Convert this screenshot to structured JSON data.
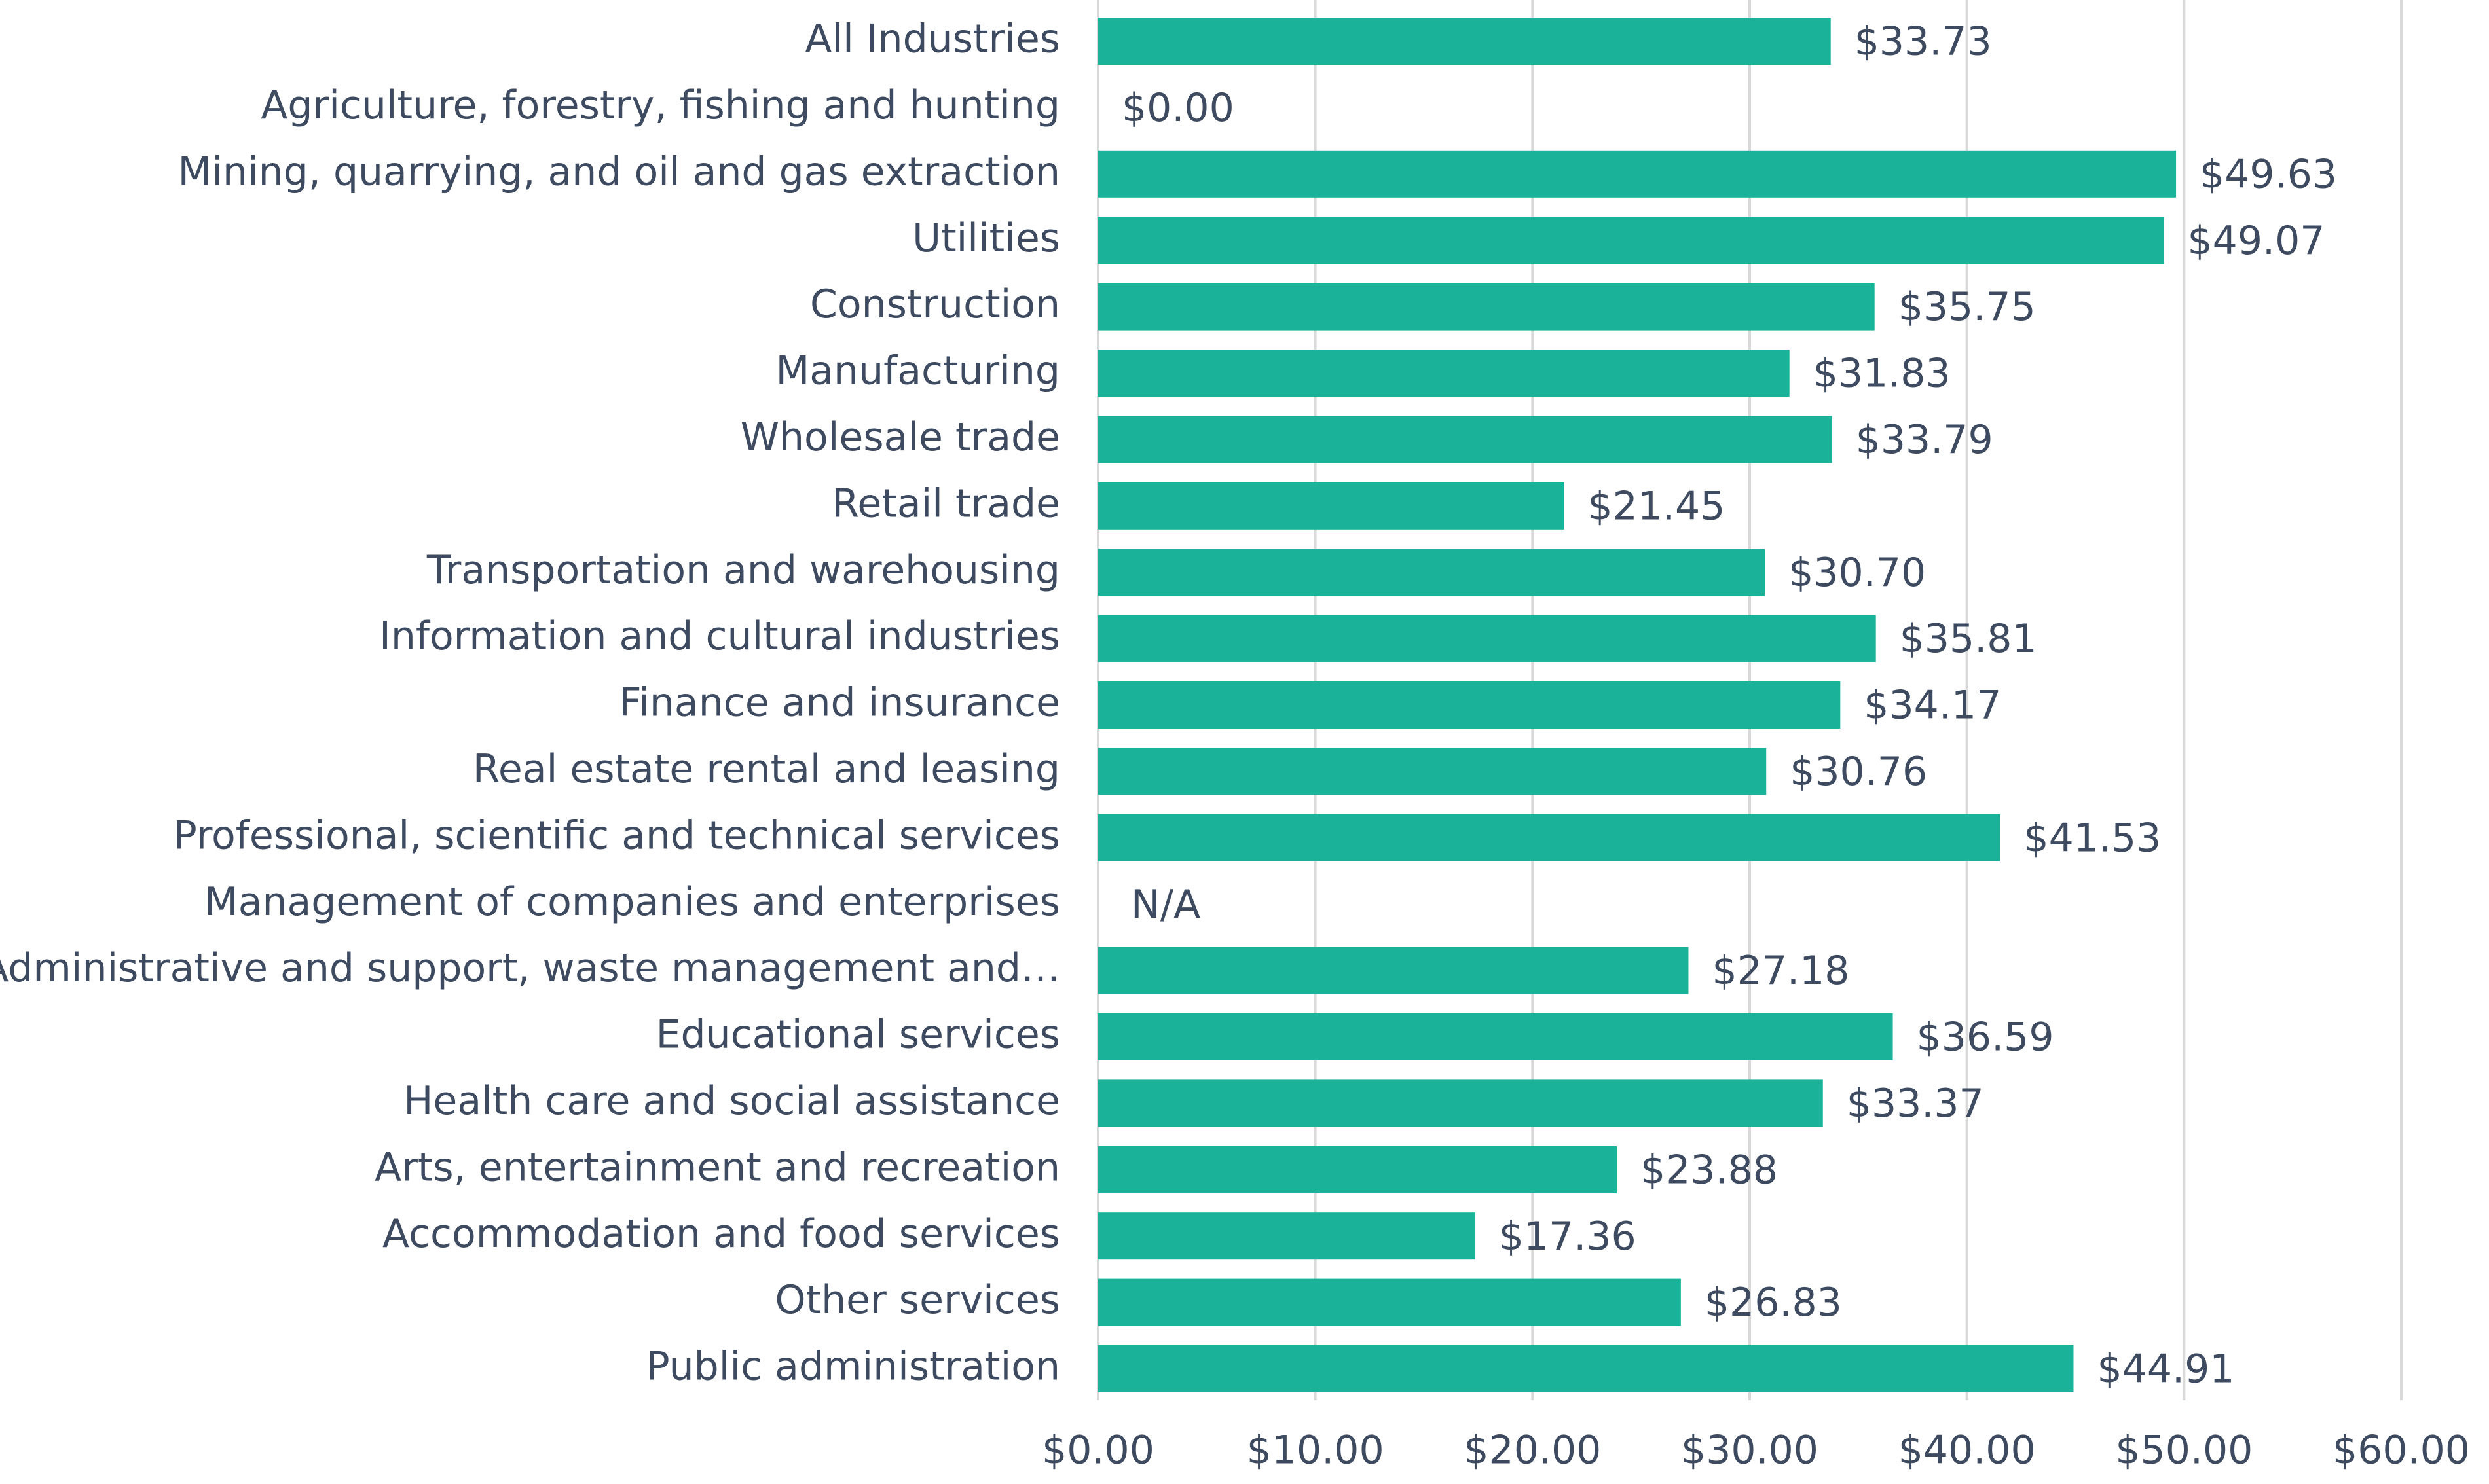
{
  "chart_data": {
    "type": "bar",
    "orientation": "horizontal",
    "categories": [
      "All Industries",
      "Agriculture, forestry, fishing and hunting",
      "Mining, quarrying, and oil and gas extraction",
      "Utilities",
      "Construction",
      "Manufacturing",
      "Wholesale trade",
      "Retail trade",
      "Transportation and warehousing",
      "Information and cultural industries",
      "Finance and insurance",
      "Real estate rental and leasing",
      "Professional, scientific and technical services",
      "Management of companies and enterprises",
      "Administrative and support, waste management and…",
      "Educational services",
      "Health care and social assistance",
      "Arts, entertainment and recreation",
      "Accommodation and food services",
      "Other services",
      "Public administration"
    ],
    "values": [
      33.73,
      0,
      49.63,
      49.07,
      35.75,
      31.83,
      33.79,
      21.45,
      30.7,
      35.81,
      34.17,
      30.76,
      41.53,
      null,
      27.18,
      36.59,
      33.37,
      23.88,
      17.36,
      26.83,
      44.91
    ],
    "value_labels": [
      "$33.73",
      "$0.00",
      "$49.63",
      "$49.07",
      "$35.75",
      "$31.83",
      "$33.79",
      "$21.45",
      "$30.70",
      "$35.81",
      "$34.17",
      "$30.76",
      "$41.53",
      "N/A",
      "$27.18",
      "$36.59",
      "$33.37",
      "$23.88",
      "$17.36",
      "$26.83",
      "$44.91"
    ],
    "color": "#1ab39a",
    "xlim": [
      0,
      60
    ],
    "xticks": [
      {
        "value": 0,
        "label": "$0.00"
      },
      {
        "value": 10,
        "label": "$10.00"
      },
      {
        "value": 20,
        "label": "$20.00"
      },
      {
        "value": 30,
        "label": "$30.00"
      },
      {
        "value": 40,
        "label": "$40.00"
      },
      {
        "value": 50,
        "label": "$50.00"
      },
      {
        "value": 60,
        "label": "$60.00"
      }
    ],
    "grid": true
  }
}
